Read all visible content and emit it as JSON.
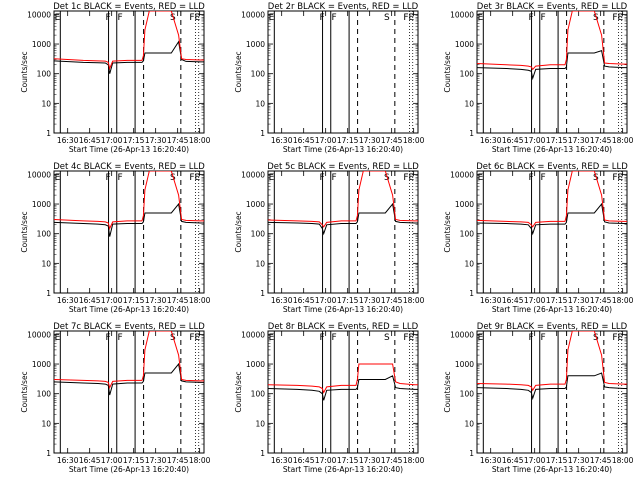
{
  "figure": {
    "x_tick_labels": [
      "16:30",
      "16:45",
      "17:00",
      "17:15",
      "17:30",
      "17:45",
      "18:00"
    ],
    "y_tick_labels": [
      "1",
      "10",
      "100",
      "1000",
      "10000"
    ],
    "xlabel": "Start Time (26-Apr-13 16:20:40)",
    "ylabel": "Counts/sec",
    "colors": {
      "events": "#000000",
      "lld": "#ff0000",
      "axes": "#000000"
    }
  },
  "chart_data": [
    {
      "type": "line",
      "title": "Det 1c BLACK = Events, RED = LLD",
      "xlabel": "Start Time (26-Apr-13 16:20:40)",
      "ylabel": "Counts/sec",
      "xlim_minutes": [
        0,
        102.3
      ],
      "ylim": [
        1,
        13000
      ],
      "yscale": "log",
      "event_labels": [
        "E",
        "F",
        "F",
        "S",
        "FE"
      ],
      "event_label_positions": [
        2.4,
        36.9,
        45.1,
        81.1,
        96.0
      ],
      "solid_markers": [
        4.3,
        37.2,
        42.8,
        55.3
      ],
      "dashed_markers": [
        61.1,
        86.5
      ],
      "dotted_markers": [
        96.5,
        98.7
      ],
      "series": [
        {
          "name": "Events",
          "color": "#000000",
          "t": [
            0,
            20,
            30,
            35,
            37,
            38,
            40,
            50,
            60,
            61,
            62,
            80,
            85,
            87,
            90,
            100,
            102.3
          ],
          "values": [
            270,
            240,
            235,
            230,
            200,
            100,
            230,
            240,
            240,
            270,
            500,
            500,
            1200,
            300,
            260,
            250,
            250
          ]
        },
        {
          "name": "LLD",
          "color": "#ff0000",
          "t": [
            0,
            20,
            30,
            35,
            37,
            38,
            40,
            50,
            60,
            61,
            62,
            65,
            70,
            80,
            85,
            87,
            90,
            100,
            102.3
          ],
          "values": [
            320,
            280,
            270,
            265,
            240,
            150,
            265,
            280,
            280,
            400,
            3000,
            13000,
            13000,
            13000,
            2000,
            320,
            300,
            290,
            290
          ]
        }
      ]
    },
    {
      "type": "line",
      "title": "Det 2r BLACK = Events, RED = LLD",
      "xlabel": "Start Time (26-Apr-13 16:20:40)",
      "ylabel": "Counts/sec",
      "xlim_minutes": [
        0,
        102.3
      ],
      "ylim": [
        1,
        13000
      ],
      "yscale": "log",
      "event_labels": [
        "E",
        "F",
        "F",
        "S",
        "FE"
      ],
      "event_label_positions": [
        2.4,
        36.9,
        45.1,
        81.1,
        96.0
      ],
      "solid_markers": [
        4.3,
        37.2,
        42.8,
        55.3
      ],
      "dashed_markers": [
        61.1,
        86.5
      ],
      "dotted_markers": [
        96.5,
        98.7
      ],
      "series": [
        {
          "name": "Events",
          "color": "#000000",
          "t": [],
          "values": []
        },
        {
          "name": "LLD",
          "color": "#ff0000",
          "t": [],
          "values": []
        }
      ]
    },
    {
      "type": "line",
      "title": "Det 3r BLACK = Events, RED = LLD",
      "xlabel": "Start Time (26-Apr-13 16:20:40)",
      "ylabel": "Counts/sec",
      "xlim_minutes": [
        0,
        102.3
      ],
      "ylim": [
        1,
        13000
      ],
      "yscale": "log",
      "event_labels": [
        "E",
        "F",
        "F",
        "S",
        "FE"
      ],
      "event_label_positions": [
        2.4,
        36.9,
        45.1,
        81.1,
        96.0
      ],
      "solid_markers": [
        4.3,
        37.2,
        42.8,
        55.3
      ],
      "dashed_markers": [
        61.1,
        86.5
      ],
      "dotted_markers": [
        96.5,
        98.7
      ],
      "series": [
        {
          "name": "Events",
          "color": "#000000",
          "t": [
            0,
            20,
            30,
            35,
            37,
            38,
            40,
            50,
            60,
            61,
            62,
            80,
            85,
            87,
            90,
            100,
            102.3
          ],
          "values": [
            160,
            150,
            140,
            130,
            120,
            70,
            140,
            150,
            150,
            170,
            500,
            500,
            600,
            180,
            170,
            160,
            160
          ]
        },
        {
          "name": "LLD",
          "color": "#ff0000",
          "t": [
            0,
            20,
            30,
            35,
            37,
            38,
            40,
            50,
            60,
            61,
            62,
            65,
            70,
            80,
            85,
            87,
            90,
            100,
            102.3
          ],
          "values": [
            220,
            200,
            190,
            180,
            170,
            140,
            180,
            200,
            200,
            300,
            3000,
            13000,
            13000,
            13000,
            2000,
            230,
            220,
            210,
            210
          ]
        }
      ]
    },
    {
      "type": "line",
      "title": "Det 4c BLACK = Events, RED = LLD",
      "xlabel": "Start Time (26-Apr-13 16:20:40)",
      "ylabel": "Counts/sec",
      "xlim_minutes": [
        0,
        102.3
      ],
      "ylim": [
        1,
        13000
      ],
      "yscale": "log",
      "event_labels": [
        "E",
        "F",
        "F",
        "S",
        "FE"
      ],
      "event_label_positions": [
        2.4,
        36.9,
        45.1,
        81.1,
        96.0
      ],
      "solid_markers": [
        4.3,
        37.2,
        42.8,
        55.3
      ],
      "dashed_markers": [
        61.1,
        86.5
      ],
      "dotted_markers": [
        96.5,
        98.7
      ],
      "series": [
        {
          "name": "Events",
          "color": "#000000",
          "t": [
            0,
            20,
            30,
            35,
            37,
            38,
            40,
            50,
            60,
            61,
            62,
            80,
            85,
            87,
            90,
            100,
            102.3
          ],
          "values": [
            240,
            220,
            210,
            200,
            180,
            80,
            210,
            220,
            220,
            250,
            500,
            500,
            1000,
            260,
            240,
            230,
            230
          ]
        },
        {
          "name": "LLD",
          "color": "#ff0000",
          "t": [
            0,
            20,
            30,
            35,
            37,
            38,
            40,
            50,
            60,
            61,
            62,
            65,
            70,
            80,
            85,
            87,
            90,
            100,
            102.3
          ],
          "values": [
            300,
            270,
            260,
            250,
            230,
            150,
            250,
            270,
            270,
            400,
            3000,
            13000,
            13000,
            13000,
            2000,
            300,
            280,
            270,
            270
          ]
        }
      ]
    },
    {
      "type": "line",
      "title": "Det 5c BLACK = Events, RED = LLD",
      "xlabel": "Start Time (26-Apr-13 16:20:40)",
      "ylabel": "Counts/sec",
      "xlim_minutes": [
        0,
        102.3
      ],
      "ylim": [
        1,
        13000
      ],
      "yscale": "log",
      "event_labels": [
        "E",
        "F",
        "F",
        "S",
        "FE"
      ],
      "event_label_positions": [
        2.4,
        36.9,
        45.1,
        81.1,
        96.0
      ],
      "solid_markers": [
        4.3,
        37.2,
        42.8,
        55.3
      ],
      "dashed_markers": [
        61.1,
        86.5
      ],
      "dotted_markers": [
        96.5,
        98.7
      ],
      "series": [
        {
          "name": "Events",
          "color": "#000000",
          "t": [
            0,
            20,
            30,
            35,
            37,
            38,
            40,
            50,
            60,
            61,
            62,
            80,
            85,
            87,
            90,
            100,
            102.3
          ],
          "values": [
            240,
            230,
            220,
            210,
            150,
            100,
            200,
            220,
            220,
            250,
            500,
            500,
            1000,
            260,
            240,
            230,
            230
          ]
        },
        {
          "name": "LLD",
          "color": "#ff0000",
          "t": [
            0,
            20,
            30,
            35,
            37,
            38,
            40,
            50,
            60,
            61,
            62,
            65,
            70,
            80,
            85,
            87,
            90,
            100,
            102.3
          ],
          "values": [
            290,
            270,
            260,
            250,
            200,
            170,
            240,
            270,
            270,
            400,
            3000,
            13000,
            13000,
            13000,
            2000,
            300,
            280,
            270,
            270
          ]
        }
      ]
    },
    {
      "type": "line",
      "title": "Det 6c BLACK = Events, RED = LLD",
      "xlabel": "Start Time (26-Apr-13 16:20:40)",
      "ylabel": "Counts/sec",
      "xlim_minutes": [
        0,
        102.3
      ],
      "ylim": [
        1,
        13000
      ],
      "yscale": "log",
      "event_labels": [
        "E",
        "F",
        "F",
        "S",
        "FE"
      ],
      "event_label_positions": [
        2.4,
        36.9,
        45.1,
        81.1,
        96.0
      ],
      "solid_markers": [
        4.3,
        37.2,
        42.8,
        55.3
      ],
      "dashed_markers": [
        61.1,
        86.5
      ],
      "dotted_markers": [
        96.5,
        98.7
      ],
      "series": [
        {
          "name": "Events",
          "color": "#000000",
          "t": [
            0,
            20,
            30,
            35,
            37,
            38,
            40,
            50,
            60,
            61,
            62,
            80,
            85,
            87,
            90,
            100,
            102.3
          ],
          "values": [
            230,
            220,
            210,
            200,
            150,
            100,
            200,
            210,
            210,
            240,
            500,
            500,
            1000,
            250,
            230,
            220,
            220
          ]
        },
        {
          "name": "LLD",
          "color": "#ff0000",
          "t": [
            0,
            20,
            30,
            35,
            37,
            38,
            40,
            50,
            60,
            61,
            62,
            65,
            70,
            80,
            85,
            87,
            90,
            100,
            102.3
          ],
          "values": [
            280,
            260,
            250,
            240,
            200,
            170,
            240,
            260,
            260,
            400,
            3000,
            13000,
            13000,
            13000,
            2000,
            290,
            270,
            260,
            260
          ]
        }
      ]
    },
    {
      "type": "line",
      "title": "Det 7c BLACK = Events, RED = LLD",
      "xlabel": "Start Time (26-Apr-13 16:20:40)",
      "ylabel": "Counts/sec",
      "xlim_minutes": [
        0,
        102.3
      ],
      "ylim": [
        1,
        13000
      ],
      "yscale": "log",
      "event_labels": [
        "E",
        "F",
        "F",
        "S",
        "FE"
      ],
      "event_label_positions": [
        2.4,
        36.9,
        45.1,
        81.1,
        96.0
      ],
      "solid_markers": [
        4.3,
        37.2,
        42.8,
        55.3
      ],
      "dashed_markers": [
        61.1,
        86.5
      ],
      "dotted_markers": [
        96.5,
        98.7
      ],
      "series": [
        {
          "name": "Events",
          "color": "#000000",
          "t": [
            0,
            20,
            30,
            35,
            37,
            38,
            40,
            50,
            60,
            61,
            62,
            80,
            85,
            87,
            90,
            100,
            102.3
          ],
          "values": [
            250,
            230,
            220,
            210,
            190,
            90,
            210,
            230,
            230,
            260,
            500,
            500,
            1000,
            270,
            250,
            240,
            240
          ]
        },
        {
          "name": "LLD",
          "color": "#ff0000",
          "t": [
            0,
            20,
            30,
            35,
            37,
            38,
            40,
            50,
            60,
            61,
            62,
            65,
            70,
            80,
            85,
            87,
            90,
            100,
            102.3
          ],
          "values": [
            300,
            280,
            270,
            260,
            240,
            160,
            260,
            280,
            280,
            400,
            3000,
            13000,
            13000,
            13000,
            2000,
            300,
            280,
            270,
            270
          ]
        }
      ]
    },
    {
      "type": "line",
      "title": "Det 8r BLACK = Events, RED = LLD",
      "xlabel": "Start Time (26-Apr-13 16:20:40)",
      "ylabel": "Counts/sec",
      "xlim_minutes": [
        0,
        102.3
      ],
      "ylim": [
        1,
        13000
      ],
      "yscale": "log",
      "event_labels": [
        "E",
        "F",
        "F",
        "S",
        "FE"
      ],
      "event_label_positions": [
        2.4,
        36.9,
        45.1,
        81.1,
        96.0
      ],
      "solid_markers": [
        4.3,
        37.2,
        42.8,
        55.3
      ],
      "dashed_markers": [
        61.1,
        86.5
      ],
      "dotted_markers": [
        96.5,
        98.7
      ],
      "series": [
        {
          "name": "Events",
          "color": "#000000",
          "t": [
            0,
            20,
            30,
            35,
            37,
            38,
            40,
            50,
            60,
            61,
            62,
            80,
            85,
            87,
            90,
            100,
            102.3
          ],
          "values": [
            150,
            140,
            130,
            120,
            100,
            60,
            130,
            140,
            140,
            160,
            300,
            300,
            400,
            160,
            150,
            140,
            140
          ]
        },
        {
          "name": "LLD",
          "color": "#ff0000",
          "t": [
            0,
            20,
            30,
            35,
            37,
            38,
            40,
            50,
            60,
            61,
            62,
            65,
            70,
            80,
            85,
            87,
            90,
            100,
            102.3
          ],
          "values": [
            200,
            190,
            180,
            170,
            150,
            110,
            170,
            190,
            190,
            300,
            1000,
            1000,
            1000,
            1000,
            1000,
            250,
            220,
            200,
            200
          ]
        }
      ]
    },
    {
      "type": "line",
      "title": "Det 9r BLACK = Events, RED = LLD",
      "xlabel": "Start Time (26-Apr-13 16:20:40)",
      "ylabel": "Counts/sec",
      "xlim_minutes": [
        0,
        102.3
      ],
      "ylim": [
        1,
        13000
      ],
      "yscale": "log",
      "event_labels": [
        "E",
        "F",
        "F",
        "S",
        "FE"
      ],
      "event_label_positions": [
        2.4,
        36.9,
        45.1,
        81.1,
        96.0
      ],
      "solid_markers": [
        4.3,
        37.2,
        42.8,
        55.3
      ],
      "dashed_markers": [
        61.1,
        86.5
      ],
      "dotted_markers": [
        96.5,
        98.7
      ],
      "series": [
        {
          "name": "Events",
          "color": "#000000",
          "t": [
            0,
            20,
            30,
            35,
            37,
            38,
            40,
            50,
            60,
            61,
            62,
            80,
            85,
            87,
            90,
            100,
            102.3
          ],
          "values": [
            160,
            150,
            140,
            130,
            110,
            70,
            140,
            150,
            150,
            170,
            400,
            400,
            500,
            170,
            160,
            150,
            150
          ]
        },
        {
          "name": "LLD",
          "color": "#ff0000",
          "t": [
            0,
            20,
            30,
            35,
            37,
            38,
            40,
            50,
            60,
            61,
            62,
            65,
            70,
            80,
            85,
            87,
            90,
            100,
            102.3
          ],
          "values": [
            220,
            210,
            200,
            190,
            170,
            130,
            190,
            210,
            210,
            300,
            3000,
            13000,
            13000,
            13000,
            2000,
            240,
            220,
            210,
            210
          ]
        }
      ]
    }
  ]
}
